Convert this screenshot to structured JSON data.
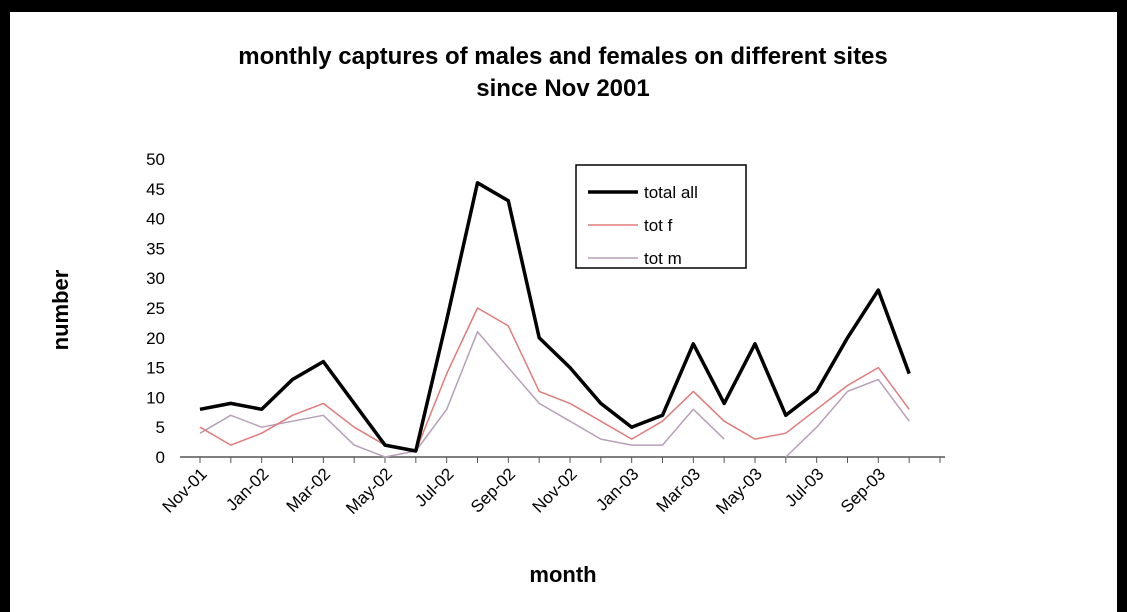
{
  "chart_data": {
    "type": "line",
    "title": [
      "monthly captures of males and females on different sites",
      "since Nov 2001"
    ],
    "xlabel": "month",
    "ylabel": "number",
    "ylim": [
      0,
      50
    ],
    "yticks": [
      0,
      5,
      10,
      15,
      20,
      25,
      30,
      35,
      40,
      45,
      50
    ],
    "x": [
      "Nov-01",
      "Dec-01",
      "Jan-02",
      "Feb-02",
      "Mar-02",
      "Apr-02",
      "May-02",
      "Jun-02",
      "Jul-02",
      "Aug-02",
      "Sep-02",
      "Oct-02",
      "Nov-02",
      "Dec-02",
      "Jan-03",
      "Feb-03",
      "Mar-03",
      "Apr-03",
      "May-03",
      "Jun-03",
      "Jul-03",
      "Aug-03",
      "Sep-03",
      "Oct-03",
      "Nov-03"
    ],
    "xtick_labels": [
      "Nov-01",
      "Jan-02",
      "Mar-02",
      "May-02",
      "Jul-02",
      "Sep-02",
      "Nov-02",
      "Jan-03",
      "Mar-03",
      "May-03",
      "Jul-03",
      "Sep-03"
    ],
    "series": [
      {
        "name": "total all",
        "color": "#000000",
        "values": [
          8,
          9,
          8,
          13,
          16,
          9,
          2,
          1,
          23,
          46,
          43,
          20,
          15,
          9,
          5,
          7,
          19,
          9,
          19,
          7,
          11,
          20,
          28,
          14,
          null
        ]
      },
      {
        "name": "tot f",
        "color": "#e07b7b",
        "values": [
          5,
          2,
          4,
          7,
          9,
          5,
          2,
          1,
          14,
          25,
          22,
          11,
          9,
          6,
          3,
          6,
          11,
          6,
          3,
          4,
          8,
          12,
          15,
          8,
          null
        ]
      },
      {
        "name": "tot m",
        "color": "#b8a0b8",
        "values": [
          4,
          7,
          5,
          6,
          7,
          2,
          0,
          1,
          8,
          21,
          15,
          9,
          6,
          3,
          2,
          2,
          8,
          3,
          null,
          0,
          5,
          11,
          13,
          6,
          null
        ]
      }
    ],
    "legend": {
      "position": "top-right"
    },
    "grid": false
  }
}
